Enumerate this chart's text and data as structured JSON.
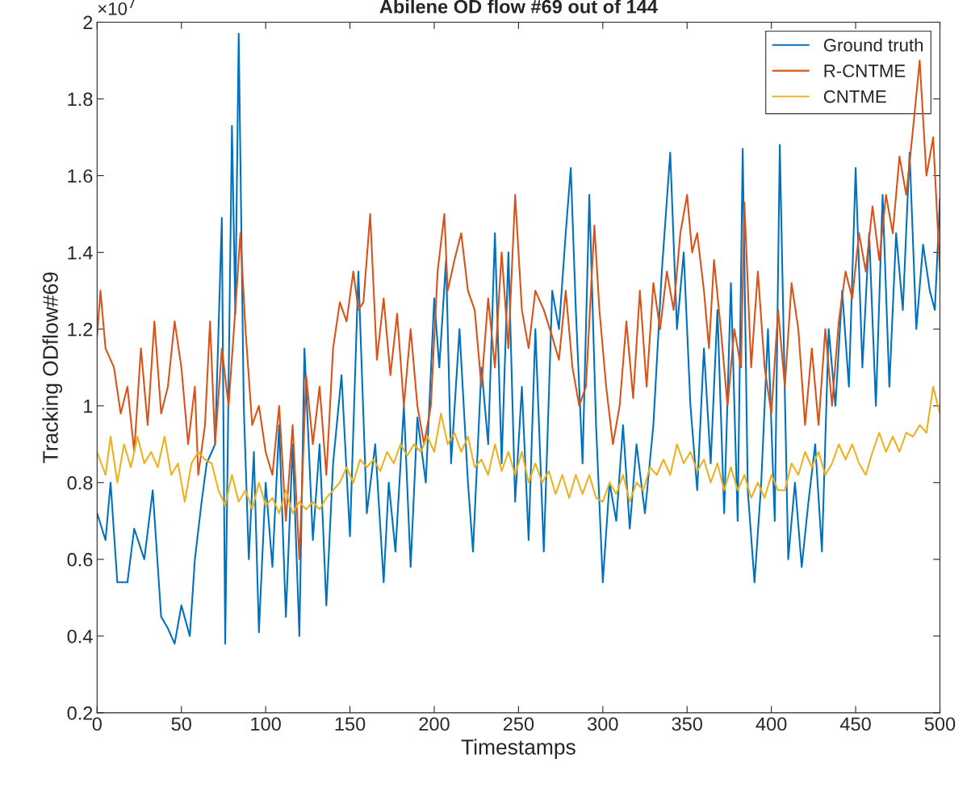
{
  "chart_data": {
    "type": "line",
    "title": "Abilene OD flow #69 out of 144",
    "xlabel": "Timestamps",
    "ylabel": "Tracking ODflow#69",
    "annotations": [
      "×10$^{7}$"
    ],
    "xlim": [
      0,
      500
    ],
    "xticks": [
      0,
      50,
      100,
      150,
      200,
      250,
      300,
      350,
      400,
      450,
      500
    ],
    "ylim": [
      0.2,
      2
    ],
    "yticks": [
      0.2,
      0.4,
      0.6,
      0.8,
      1,
      1.2,
      1.4,
      1.6,
      1.8,
      2
    ],
    "grid": false,
    "legend": "top right",
    "marker": "none",
    "line_style": "solid",
    "series": [
      {
        "name": "Ground truth",
        "color": "#0072bd",
        "x": [
          0,
          5,
          8,
          12,
          18,
          22,
          28,
          33,
          38,
          42,
          46,
          50,
          55,
          58,
          62,
          65,
          70,
          74,
          76,
          80,
          82,
          84,
          87,
          90,
          93,
          96,
          100,
          104,
          108,
          112,
          116,
          120,
          123,
          128,
          132,
          136,
          140,
          145,
          150,
          155,
          160,
          165,
          170,
          173,
          177,
          182,
          186,
          190,
          195,
          200,
          203,
          207,
          210,
          215,
          220,
          223,
          228,
          232,
          236,
          240,
          244,
          248,
          252,
          256,
          260,
          265,
          270,
          274,
          278,
          281,
          284,
          288,
          292,
          296,
          300,
          304,
          308,
          312,
          316,
          320,
          325,
          330,
          335,
          340,
          344,
          348,
          352,
          356,
          360,
          364,
          368,
          372,
          376,
          380,
          383,
          386,
          390,
          394,
          398,
          402,
          405,
          410,
          414,
          418,
          422,
          426,
          430,
          434,
          438,
          442,
          446,
          450,
          454,
          458,
          462,
          466,
          470,
          474,
          478,
          482,
          486,
          490,
          494,
          497,
          500
        ],
        "values": [
          0.72,
          0.65,
          0.8,
          0.54,
          0.54,
          0.68,
          0.6,
          0.78,
          0.45,
          0.42,
          0.38,
          0.48,
          0.4,
          0.6,
          0.75,
          0.85,
          0.9,
          1.49,
          0.38,
          1.73,
          1.24,
          1.97,
          1.0,
          0.6,
          0.88,
          0.41,
          0.8,
          0.58,
          0.95,
          0.45,
          0.9,
          0.4,
          1.15,
          0.65,
          0.9,
          0.48,
          0.85,
          1.08,
          0.66,
          1.35,
          0.72,
          0.9,
          0.54,
          0.8,
          0.62,
          1.0,
          0.58,
          0.97,
          0.8,
          1.28,
          1.1,
          1.38,
          0.85,
          1.2,
          0.8,
          0.62,
          1.1,
          0.9,
          1.45,
          0.85,
          1.4,
          0.75,
          1.05,
          0.65,
          1.2,
          0.62,
          1.3,
          1.2,
          1.45,
          1.62,
          1.25,
          0.85,
          1.55,
          0.95,
          0.54,
          0.8,
          0.7,
          0.95,
          0.68,
          0.9,
          0.72,
          0.95,
          1.35,
          1.66,
          1.2,
          1.4,
          1.0,
          0.78,
          1.15,
          0.85,
          1.25,
          0.72,
          1.32,
          0.7,
          1.67,
          0.78,
          0.54,
          0.8,
          1.2,
          0.7,
          1.68,
          0.6,
          0.8,
          0.58,
          0.75,
          0.9,
          0.62,
          1.2,
          1.0,
          1.3,
          1.05,
          1.62,
          1.1,
          1.45,
          1.0,
          1.55,
          1.05,
          1.45,
          1.25,
          1.66,
          1.2,
          1.42,
          1.3,
          1.25,
          1.54
        ]
      },
      {
        "name": "R-CNTME",
        "color": "#d95319",
        "x": [
          0,
          2,
          5,
          10,
          14,
          18,
          22,
          26,
          30,
          34,
          38,
          42,
          46,
          50,
          54,
          58,
          60,
          64,
          67,
          70,
          74,
          78,
          82,
          85,
          88,
          92,
          96,
          100,
          104,
          108,
          112,
          116,
          120,
          124,
          128,
          132,
          136,
          140,
          144,
          148,
          152,
          155,
          158,
          162,
          166,
          170,
          174,
          178,
          182,
          186,
          190,
          194,
          198,
          202,
          206,
          208,
          212,
          216,
          220,
          224,
          228,
          232,
          236,
          240,
          244,
          248,
          252,
          256,
          260,
          265,
          270,
          274,
          278,
          282,
          286,
          290,
          295,
          298,
          302,
          306,
          310,
          314,
          318,
          322,
          326,
          330,
          334,
          338,
          342,
          346,
          350,
          353,
          356,
          360,
          363,
          366,
          370,
          374,
          378,
          382,
          384,
          388,
          392,
          396,
          400,
          404,
          408,
          412,
          416,
          420,
          424,
          428,
          432,
          436,
          440,
          444,
          448,
          452,
          456,
          460,
          464,
          468,
          472,
          476,
          480,
          484,
          488,
          492,
          496,
          500
        ],
        "values": [
          1.18,
          1.3,
          1.15,
          1.1,
          0.98,
          1.05,
          0.88,
          1.15,
          0.95,
          1.22,
          0.98,
          1.05,
          1.22,
          1.1,
          0.9,
          1.05,
          0.82,
          0.95,
          1.22,
          0.9,
          1.15,
          1.0,
          1.25,
          1.45,
          1.2,
          0.95,
          1.0,
          0.88,
          0.82,
          1.0,
          0.7,
          0.95,
          0.6,
          1.08,
          0.9,
          1.05,
          0.82,
          1.15,
          1.27,
          1.22,
          1.35,
          1.25,
          1.27,
          1.5,
          1.12,
          1.28,
          1.08,
          1.24,
          1.0,
          1.2,
          1.0,
          0.9,
          1.0,
          1.35,
          1.5,
          1.3,
          1.38,
          1.45,
          1.3,
          1.25,
          1.05,
          1.28,
          1.1,
          1.4,
          1.15,
          1.55,
          1.25,
          1.15,
          1.3,
          1.25,
          1.18,
          1.12,
          1.3,
          1.1,
          1.0,
          1.05,
          1.47,
          1.25,
          1.05,
          0.9,
          1.0,
          1.22,
          1.02,
          1.3,
          1.05,
          1.32,
          1.2,
          1.35,
          1.25,
          1.45,
          1.55,
          1.4,
          1.45,
          1.3,
          1.15,
          1.38,
          1.2,
          1.0,
          1.2,
          1.1,
          1.53,
          1.1,
          1.35,
          1.1,
          0.98,
          1.25,
          1.05,
          1.32,
          1.2,
          0.95,
          1.15,
          0.95,
          1.2,
          1.0,
          1.22,
          1.35,
          1.28,
          1.45,
          1.35,
          1.52,
          1.38,
          1.55,
          1.45,
          1.65,
          1.55,
          1.72,
          1.9,
          1.6,
          1.7,
          1.35
        ]
      },
      {
        "name": "CNTME",
        "color": "#edb120",
        "x": [
          0,
          5,
          8,
          12,
          16,
          20,
          24,
          28,
          32,
          36,
          40,
          44,
          48,
          52,
          56,
          60,
          64,
          68,
          72,
          76,
          80,
          84,
          88,
          92,
          96,
          100,
          104,
          108,
          112,
          116,
          120,
          124,
          128,
          132,
          136,
          140,
          144,
          148,
          152,
          156,
          160,
          164,
          168,
          172,
          176,
          180,
          184,
          188,
          192,
          196,
          200,
          204,
          208,
          212,
          216,
          220,
          224,
          228,
          232,
          236,
          240,
          244,
          248,
          252,
          256,
          260,
          264,
          268,
          272,
          276,
          280,
          284,
          288,
          292,
          296,
          300,
          304,
          308,
          312,
          316,
          320,
          324,
          328,
          332,
          336,
          340,
          344,
          348,
          352,
          356,
          360,
          364,
          368,
          372,
          376,
          380,
          384,
          388,
          392,
          396,
          400,
          404,
          408,
          412,
          416,
          420,
          424,
          428,
          432,
          436,
          440,
          444,
          448,
          452,
          456,
          460,
          464,
          468,
          472,
          476,
          480,
          484,
          488,
          492,
          496,
          500
        ],
        "values": [
          0.88,
          0.82,
          0.92,
          0.8,
          0.9,
          0.84,
          0.92,
          0.85,
          0.88,
          0.84,
          0.92,
          0.82,
          0.85,
          0.75,
          0.85,
          0.88,
          0.86,
          0.85,
          0.78,
          0.74,
          0.82,
          0.75,
          0.78,
          0.73,
          0.8,
          0.74,
          0.76,
          0.72,
          0.78,
          0.72,
          0.75,
          0.73,
          0.75,
          0.73,
          0.76,
          0.78,
          0.8,
          0.84,
          0.8,
          0.86,
          0.84,
          0.86,
          0.83,
          0.88,
          0.85,
          0.9,
          0.87,
          0.9,
          0.88,
          0.92,
          0.88,
          0.98,
          0.9,
          0.93,
          0.88,
          0.92,
          0.84,
          0.86,
          0.82,
          0.9,
          0.83,
          0.88,
          0.82,
          0.88,
          0.8,
          0.85,
          0.8,
          0.83,
          0.77,
          0.82,
          0.76,
          0.82,
          0.77,
          0.82,
          0.76,
          0.75,
          0.8,
          0.77,
          0.82,
          0.75,
          0.8,
          0.78,
          0.84,
          0.82,
          0.86,
          0.82,
          0.9,
          0.85,
          0.88,
          0.83,
          0.86,
          0.8,
          0.85,
          0.78,
          0.84,
          0.78,
          0.82,
          0.76,
          0.8,
          0.76,
          0.82,
          0.78,
          0.78,
          0.85,
          0.82,
          0.88,
          0.84,
          0.88,
          0.82,
          0.85,
          0.9,
          0.86,
          0.9,
          0.85,
          0.82,
          0.88,
          0.93,
          0.88,
          0.92,
          0.88,
          0.93,
          0.92,
          0.95,
          0.93,
          1.05,
          0.98
        ]
      }
    ]
  }
}
